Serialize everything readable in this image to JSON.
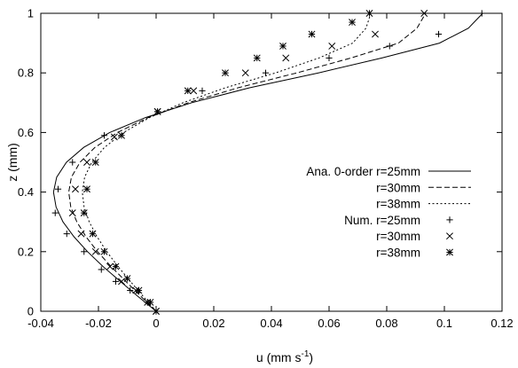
{
  "chart_data": {
    "type": "line",
    "xlabel": "u (mm s",
    "xlabel_sup": "-1",
    "xlabel_close": ")",
    "ylabel": "z (mm)",
    "xlim": [
      -0.04,
      0.12
    ],
    "ylim": [
      0,
      1
    ],
    "x_ticks": [
      -0.04,
      -0.02,
      0,
      0.02,
      0.04,
      0.06,
      0.08,
      0.1,
      0.12
    ],
    "x_tick_labels": [
      "-0.04",
      "-0.02",
      "0",
      "0.02",
      "0.04",
      "0.06",
      "0.08",
      "0.1",
      "0.12"
    ],
    "y_ticks": [
      0,
      0.2,
      0.4,
      0.6,
      0.8,
      1
    ],
    "y_tick_labels": [
      "0",
      "0.2",
      "0.4",
      "0.6",
      "0.8",
      "1"
    ],
    "grid": false,
    "legend_position": "right",
    "legend": [
      {
        "label": "Ana. 0-order r=25mm",
        "style": "solid"
      },
      {
        "label": "r=30mm",
        "style": "dashed"
      },
      {
        "label": "r=38mm",
        "style": "dotted"
      },
      {
        "label": "Num. r=25mm",
        "style": "plus"
      },
      {
        "label": "r=30mm",
        "style": "cross"
      },
      {
        "label": "r=38mm",
        "style": "star"
      }
    ],
    "series": [
      {
        "kind": "line",
        "style": "solid",
        "points": [
          [
            0,
            0
          ],
          [
            -0.0063,
            0.05
          ],
          [
            -0.0124,
            0.1
          ],
          [
            -0.0184,
            0.15
          ],
          [
            -0.0238,
            0.2
          ],
          [
            -0.0285,
            0.25
          ],
          [
            -0.0323,
            0.3
          ],
          [
            -0.0347,
            0.35
          ],
          [
            -0.0356,
            0.4
          ],
          [
            -0.0345,
            0.45
          ],
          [
            -0.0311,
            0.5
          ],
          [
            -0.0251,
            0.55
          ],
          [
            -0.0161,
            0.6
          ],
          [
            -0.0037,
            0.65
          ],
          [
            0.0124,
            0.7
          ],
          [
            0.0324,
            0.75
          ],
          [
            0.0563,
            0.8
          ],
          [
            0.0783,
            0.85
          ],
          [
            0.0983,
            0.9
          ],
          [
            0.1083,
            0.95
          ],
          [
            0.1133,
            1.0
          ]
        ]
      },
      {
        "kind": "line",
        "style": "dashed",
        "points": [
          [
            0,
            0
          ],
          [
            -0.0053,
            0.05
          ],
          [
            -0.0105,
            0.1
          ],
          [
            -0.0156,
            0.15
          ],
          [
            -0.0203,
            0.2
          ],
          [
            -0.0243,
            0.25
          ],
          [
            -0.0275,
            0.3
          ],
          [
            -0.0296,
            0.35
          ],
          [
            -0.0303,
            0.4
          ],
          [
            -0.0294,
            0.45
          ],
          [
            -0.0264,
            0.5
          ],
          [
            -0.0212,
            0.55
          ],
          [
            -0.0134,
            0.6
          ],
          [
            -0.0027,
            0.65
          ],
          [
            0.0112,
            0.7
          ],
          [
            0.0284,
            0.75
          ],
          [
            0.0488,
            0.8
          ],
          [
            0.0676,
            0.85
          ],
          [
            0.0841,
            0.9
          ],
          [
            0.0905,
            0.95
          ],
          [
            0.0935,
            1.0
          ]
        ]
      },
      {
        "kind": "line",
        "style": "dotted",
        "points": [
          [
            0,
            0
          ],
          [
            -0.0045,
            0.05
          ],
          [
            -0.0089,
            0.1
          ],
          [
            -0.0132,
            0.15
          ],
          [
            -0.0171,
            0.2
          ],
          [
            -0.0205,
            0.25
          ],
          [
            -0.0232,
            0.3
          ],
          [
            -0.025,
            0.35
          ],
          [
            -0.0256,
            0.4
          ],
          [
            -0.0248,
            0.45
          ],
          [
            -0.0223,
            0.5
          ],
          [
            -0.0179,
            0.55
          ],
          [
            -0.0113,
            0.6
          ],
          [
            -0.0023,
            0.65
          ],
          [
            0.0094,
            0.7
          ],
          [
            0.024,
            0.75
          ],
          [
            0.0414,
            0.8
          ],
          [
            0.0565,
            0.85
          ],
          [
            0.0682,
            0.9
          ],
          [
            0.0728,
            0.95
          ],
          [
            0.0745,
            1.0
          ]
        ]
      },
      {
        "kind": "markers",
        "marker": "plus",
        "points": [
          [
            0,
            0
          ],
          [
            -0.003,
            0.03
          ],
          [
            -0.009,
            0.07
          ],
          [
            -0.014,
            0.1
          ],
          [
            -0.019,
            0.14
          ],
          [
            -0.025,
            0.2
          ],
          [
            -0.031,
            0.26
          ],
          [
            -0.035,
            0.33
          ],
          [
            -0.034,
            0.41
          ],
          [
            -0.029,
            0.5
          ],
          [
            -0.018,
            0.59
          ],
          [
            0.0005,
            0.67
          ],
          [
            0.016,
            0.74
          ],
          [
            0.038,
            0.8
          ],
          [
            0.06,
            0.85
          ],
          [
            0.081,
            0.89
          ],
          [
            0.098,
            0.93
          ],
          [
            0.113,
            1.0
          ]
        ]
      },
      {
        "kind": "markers",
        "marker": "cross",
        "points": [
          [
            0,
            0
          ],
          [
            -0.003,
            0.03
          ],
          [
            -0.007,
            0.07
          ],
          [
            -0.012,
            0.1
          ],
          [
            -0.016,
            0.15
          ],
          [
            -0.021,
            0.2
          ],
          [
            -0.026,
            0.26
          ],
          [
            -0.029,
            0.33
          ],
          [
            -0.028,
            0.41
          ],
          [
            -0.024,
            0.5
          ],
          [
            -0.0145,
            0.585
          ],
          [
            0.0005,
            0.67
          ],
          [
            0.013,
            0.74
          ],
          [
            0.031,
            0.8
          ],
          [
            0.045,
            0.85
          ],
          [
            0.061,
            0.89
          ],
          [
            0.076,
            0.93
          ],
          [
            0.093,
            1.0
          ]
        ]
      },
      {
        "kind": "markers",
        "marker": "star",
        "points": [
          [
            0,
            0
          ],
          [
            -0.002,
            0.03
          ],
          [
            -0.006,
            0.07
          ],
          [
            -0.01,
            0.11
          ],
          [
            -0.014,
            0.15
          ],
          [
            -0.018,
            0.2
          ],
          [
            -0.022,
            0.26
          ],
          [
            -0.025,
            0.33
          ],
          [
            -0.024,
            0.41
          ],
          [
            -0.021,
            0.5
          ],
          [
            -0.012,
            0.59
          ],
          [
            0.0005,
            0.67
          ],
          [
            0.011,
            0.74
          ],
          [
            0.024,
            0.8
          ],
          [
            0.035,
            0.85
          ],
          [
            0.044,
            0.89
          ],
          [
            0.054,
            0.93
          ],
          [
            0.068,
            0.97
          ],
          [
            0.074,
            1.0
          ]
        ]
      }
    ]
  }
}
